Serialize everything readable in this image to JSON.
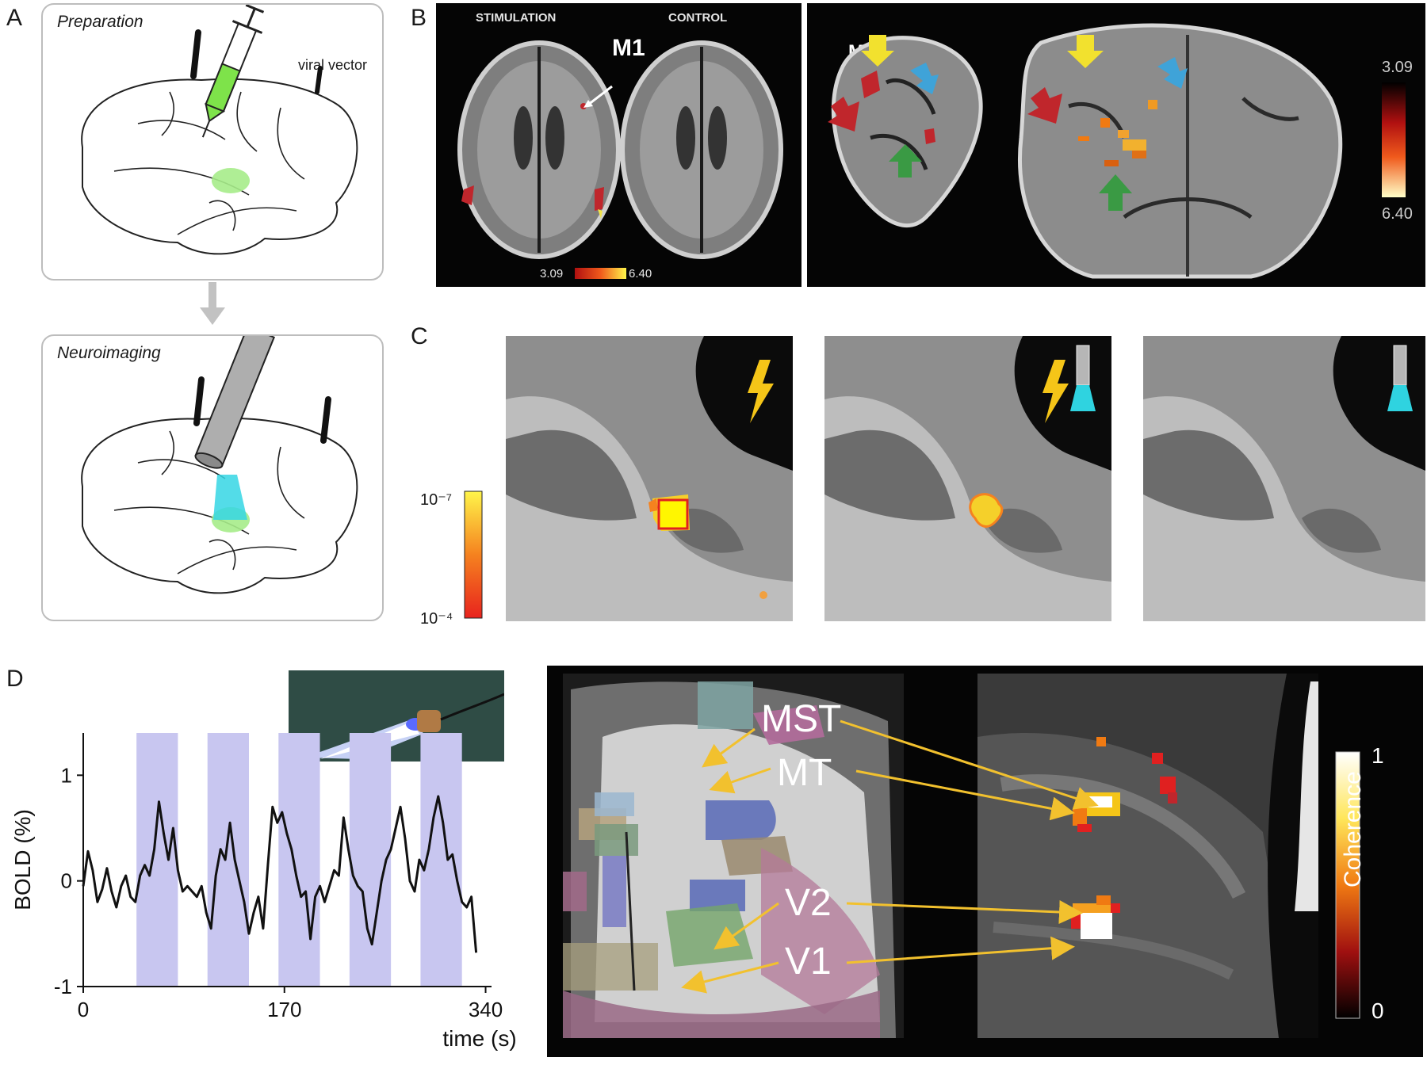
{
  "panels": {
    "A": {
      "letter": "A",
      "preparation_title": "Preparation",
      "viral_vector_label": "viral vector",
      "neuroimaging_title": "Neuroimaging"
    },
    "B": {
      "letter": "B",
      "stimulation_label": "STIMULATION",
      "control_label": "CONTROL",
      "m1_label": "M1",
      "m1_label_coronal": "M1",
      "scale_min": "3.09",
      "scale_max": "6.40",
      "colorbar_top": "3.09",
      "colorbar_bottom": "6.40"
    },
    "C": {
      "letter": "C",
      "colorbar_top": "10⁻⁷",
      "colorbar_bottom": "10⁻⁴"
    },
    "D": {
      "letter": "D",
      "area_labels": [
        "MST",
        "MT",
        "V2",
        "V1"
      ],
      "colorbar_label": "Coherence",
      "colorbar_top": "1",
      "colorbar_bottom": "0"
    }
  },
  "chart_data": {
    "type": "line",
    "xlabel": "time (s)",
    "ylabel": "BOLD (%)",
    "xlim": [
      0,
      345
    ],
    "ylim": [
      -1,
      1.4
    ],
    "xticks": [
      "0",
      "170",
      "340"
    ],
    "yticks": [
      "1",
      "0",
      "-1"
    ],
    "stimulation_blocks": [
      [
        45,
        80
      ],
      [
        105,
        140
      ],
      [
        165,
        200
      ],
      [
        225,
        260
      ],
      [
        285,
        320
      ]
    ],
    "x": [
      0,
      4,
      8,
      12,
      16,
      20,
      24,
      28,
      32,
      36,
      40,
      44,
      48,
      52,
      56,
      60,
      64,
      68,
      72,
      76,
      80,
      84,
      88,
      92,
      96,
      100,
      104,
      108,
      112,
      116,
      120,
      124,
      128,
      132,
      136,
      140,
      144,
      148,
      152,
      156,
      160,
      164,
      168,
      172,
      176,
      180,
      184,
      188,
      192,
      196,
      200,
      204,
      208,
      212,
      216,
      220,
      224,
      228,
      232,
      236,
      240,
      244,
      248,
      252,
      256,
      260,
      264,
      268,
      272,
      276,
      280,
      284,
      288,
      292,
      296,
      300,
      304,
      308,
      312,
      316,
      320,
      324,
      328,
      332
    ],
    "y": [
      -0.05,
      0.28,
      0.1,
      -0.2,
      -0.08,
      0.12,
      -0.1,
      -0.25,
      -0.05,
      0.05,
      -0.15,
      -0.2,
      0.05,
      0.15,
      0.05,
      0.3,
      0.75,
      0.45,
      0.2,
      0.5,
      0.1,
      -0.1,
      -0.05,
      -0.1,
      -0.15,
      -0.05,
      -0.3,
      -0.45,
      0.05,
      0.3,
      0.2,
      0.55,
      0.2,
      0.0,
      -0.2,
      -0.5,
      -0.3,
      -0.15,
      -0.45,
      0.15,
      0.7,
      0.55,
      0.65,
      0.45,
      0.3,
      0.05,
      -0.15,
      -0.1,
      -0.55,
      -0.15,
      -0.05,
      -0.2,
      -0.05,
      0.1,
      0.05,
      0.6,
      0.3,
      0.05,
      -0.05,
      -0.1,
      -0.45,
      -0.6,
      -0.3,
      0.0,
      0.2,
      0.3,
      0.5,
      0.7,
      0.4,
      0.0,
      -0.1,
      0.2,
      0.1,
      0.3,
      0.6,
      0.8,
      0.55,
      0.2,
      0.25,
      0.0,
      -0.2,
      -0.25,
      -0.15,
      -0.68
    ]
  },
  "colors": {
    "stim_block": "#c8c6f0",
    "trace": "#111111",
    "arrow_yellow": "#f2c12e",
    "arrow_red": "#c0262c",
    "arrow_blue": "#3fa3d8",
    "arrow_green": "#3a9a44",
    "viral_green": "#7ee34a",
    "light_cyan": "#2fd3e0"
  }
}
